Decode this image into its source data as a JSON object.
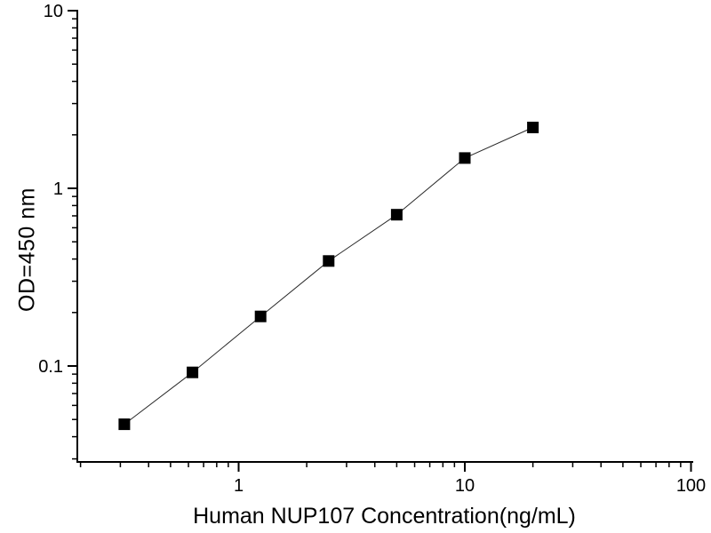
{
  "chart_data": {
    "type": "scatter",
    "title": "",
    "xlabel": "Human NUP107 Concentration(ng/mL)",
    "ylabel": "OD=450 nm",
    "xscale": "log",
    "yscale": "log",
    "xlim": [
      0.19,
      105
    ],
    "ylim": [
      0.029,
      10
    ],
    "grid": false,
    "legend": false,
    "marker": "filled-square",
    "line_style": "solid-thin",
    "x": [
      0.3125,
      0.625,
      1.25,
      2.5,
      5,
      10,
      20
    ],
    "y": [
      0.047,
      0.092,
      0.19,
      0.39,
      0.71,
      1.48,
      2.2
    ],
    "x_major_ticks": [
      1,
      10,
      100
    ],
    "x_major_tick_labels": [
      "1",
      "10",
      "100"
    ],
    "y_major_ticks": [
      10,
      1,
      0.1
    ],
    "y_major_tick_labels": [
      "10",
      "1",
      "0.1"
    ],
    "colors": {
      "axis": "#000000",
      "tick_label": "#000000",
      "marker": "#000000",
      "line": "#2a2a2a",
      "background": "#ffffff"
    }
  }
}
